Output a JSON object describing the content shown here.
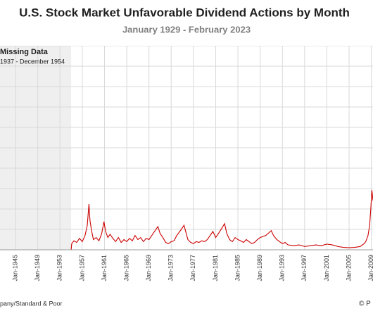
{
  "chart_data": {
    "type": "line",
    "title": "U.S. Stock Market Unfavorable Dividend Actions by Month",
    "subtitle": "January 1929 - February 2023",
    "annotation_title": "Missing Data",
    "annotation_text": "1937 - December 1954",
    "source": "pany/Standard & Poor",
    "credit": "© P",
    "missing_span": [
      1937,
      1955
    ],
    "xlim": [
      1942.2,
      2009.3
    ],
    "ylim": [
      0,
      500
    ],
    "grid": true,
    "xticks": [
      {
        "value": 1945,
        "label": "Jan-1945"
      },
      {
        "value": 1949,
        "label": "Jan-1949"
      },
      {
        "value": 1953,
        "label": "Jan-1953"
      },
      {
        "value": 1957,
        "label": "Jan-1957"
      },
      {
        "value": 1961,
        "label": "Jan-1961"
      },
      {
        "value": 1965,
        "label": "Jan-1965"
      },
      {
        "value": 1969,
        "label": "Jan-1969"
      },
      {
        "value": 1973,
        "label": "Jan-1973"
      },
      {
        "value": 1977,
        "label": "Jan-1977"
      },
      {
        "value": 1981,
        "label": "Jan-1981"
      },
      {
        "value": 1985,
        "label": "Jan-1985"
      },
      {
        "value": 1989,
        "label": "Jan-1989"
      },
      {
        "value": 1993,
        "label": "Jan-1993"
      },
      {
        "value": 1997,
        "label": "Jan-1997"
      },
      {
        "value": 2001,
        "label": "Jan-2001"
      },
      {
        "value": 2005,
        "label": "Jan-2005"
      },
      {
        "value": 2009,
        "label": "Jan-2009"
      }
    ],
    "series": [
      {
        "color": "#cc0000",
        "x": [
          1942.2,
          1955.0,
          1955.1,
          1955.5,
          1956,
          1956.5,
          1957,
          1957.5,
          1957.9,
          1958.2,
          1958.4,
          1958.7,
          1959,
          1959.5,
          1960,
          1960.5,
          1960.9,
          1961.2,
          1961.6,
          1962,
          1962.5,
          1963,
          1963.5,
          1964,
          1964.5,
          1965,
          1965.5,
          1966,
          1966.5,
          1967,
          1967.5,
          1968,
          1968.5,
          1969,
          1969.5,
          1970,
          1970.6,
          1971,
          1971.5,
          1972,
          1972.5,
          1973,
          1973.5,
          1974,
          1974.8,
          1975.3,
          1975.7,
          1976,
          1976.5,
          1977,
          1977.5,
          1978,
          1978.5,
          1979,
          1979.5,
          1980,
          1980.5,
          1981,
          1981.5,
          1982.2,
          1982.6,
          1983,
          1983.5,
          1984,
          1984.5,
          1985,
          1985.5,
          1986,
          1986.5,
          1987,
          1987.5,
          1988,
          1988.5,
          1989,
          1990,
          1990.6,
          1991,
          1991.4,
          1992,
          1992.5,
          1993,
          1993.5,
          1994,
          1995,
          1996,
          1997,
          1998,
          1999,
          2000,
          2001,
          2002,
          2003,
          2004,
          2005,
          2006,
          2007,
          2007.7,
          2008,
          2008.4,
          2008.7,
          2008.9,
          2009.1,
          2009.3
        ],
        "values": [
          0,
          0,
          15,
          22,
          18,
          28,
          20,
          35,
          60,
          112,
          70,
          45,
          25,
          30,
          22,
          40,
          69,
          45,
          30,
          38,
          28,
          20,
          30,
          18,
          25,
          20,
          28,
          22,
          35,
          25,
          30,
          20,
          28,
          25,
          35,
          45,
          57,
          40,
          30,
          18,
          15,
          20,
          22,
          35,
          50,
          60,
          40,
          25,
          18,
          15,
          20,
          18,
          22,
          20,
          25,
          35,
          45,
          30,
          40,
          55,
          64,
          40,
          25,
          20,
          30,
          25,
          22,
          18,
          25,
          20,
          15,
          18,
          25,
          30,
          35,
          42,
          47,
          35,
          25,
          20,
          15,
          18,
          12,
          10,
          12,
          8,
          10,
          12,
          10,
          14,
          12,
          8,
          6,
          5,
          6,
          8,
          15,
          20,
          35,
          60,
          100,
          146,
          120
        ]
      }
    ]
  }
}
